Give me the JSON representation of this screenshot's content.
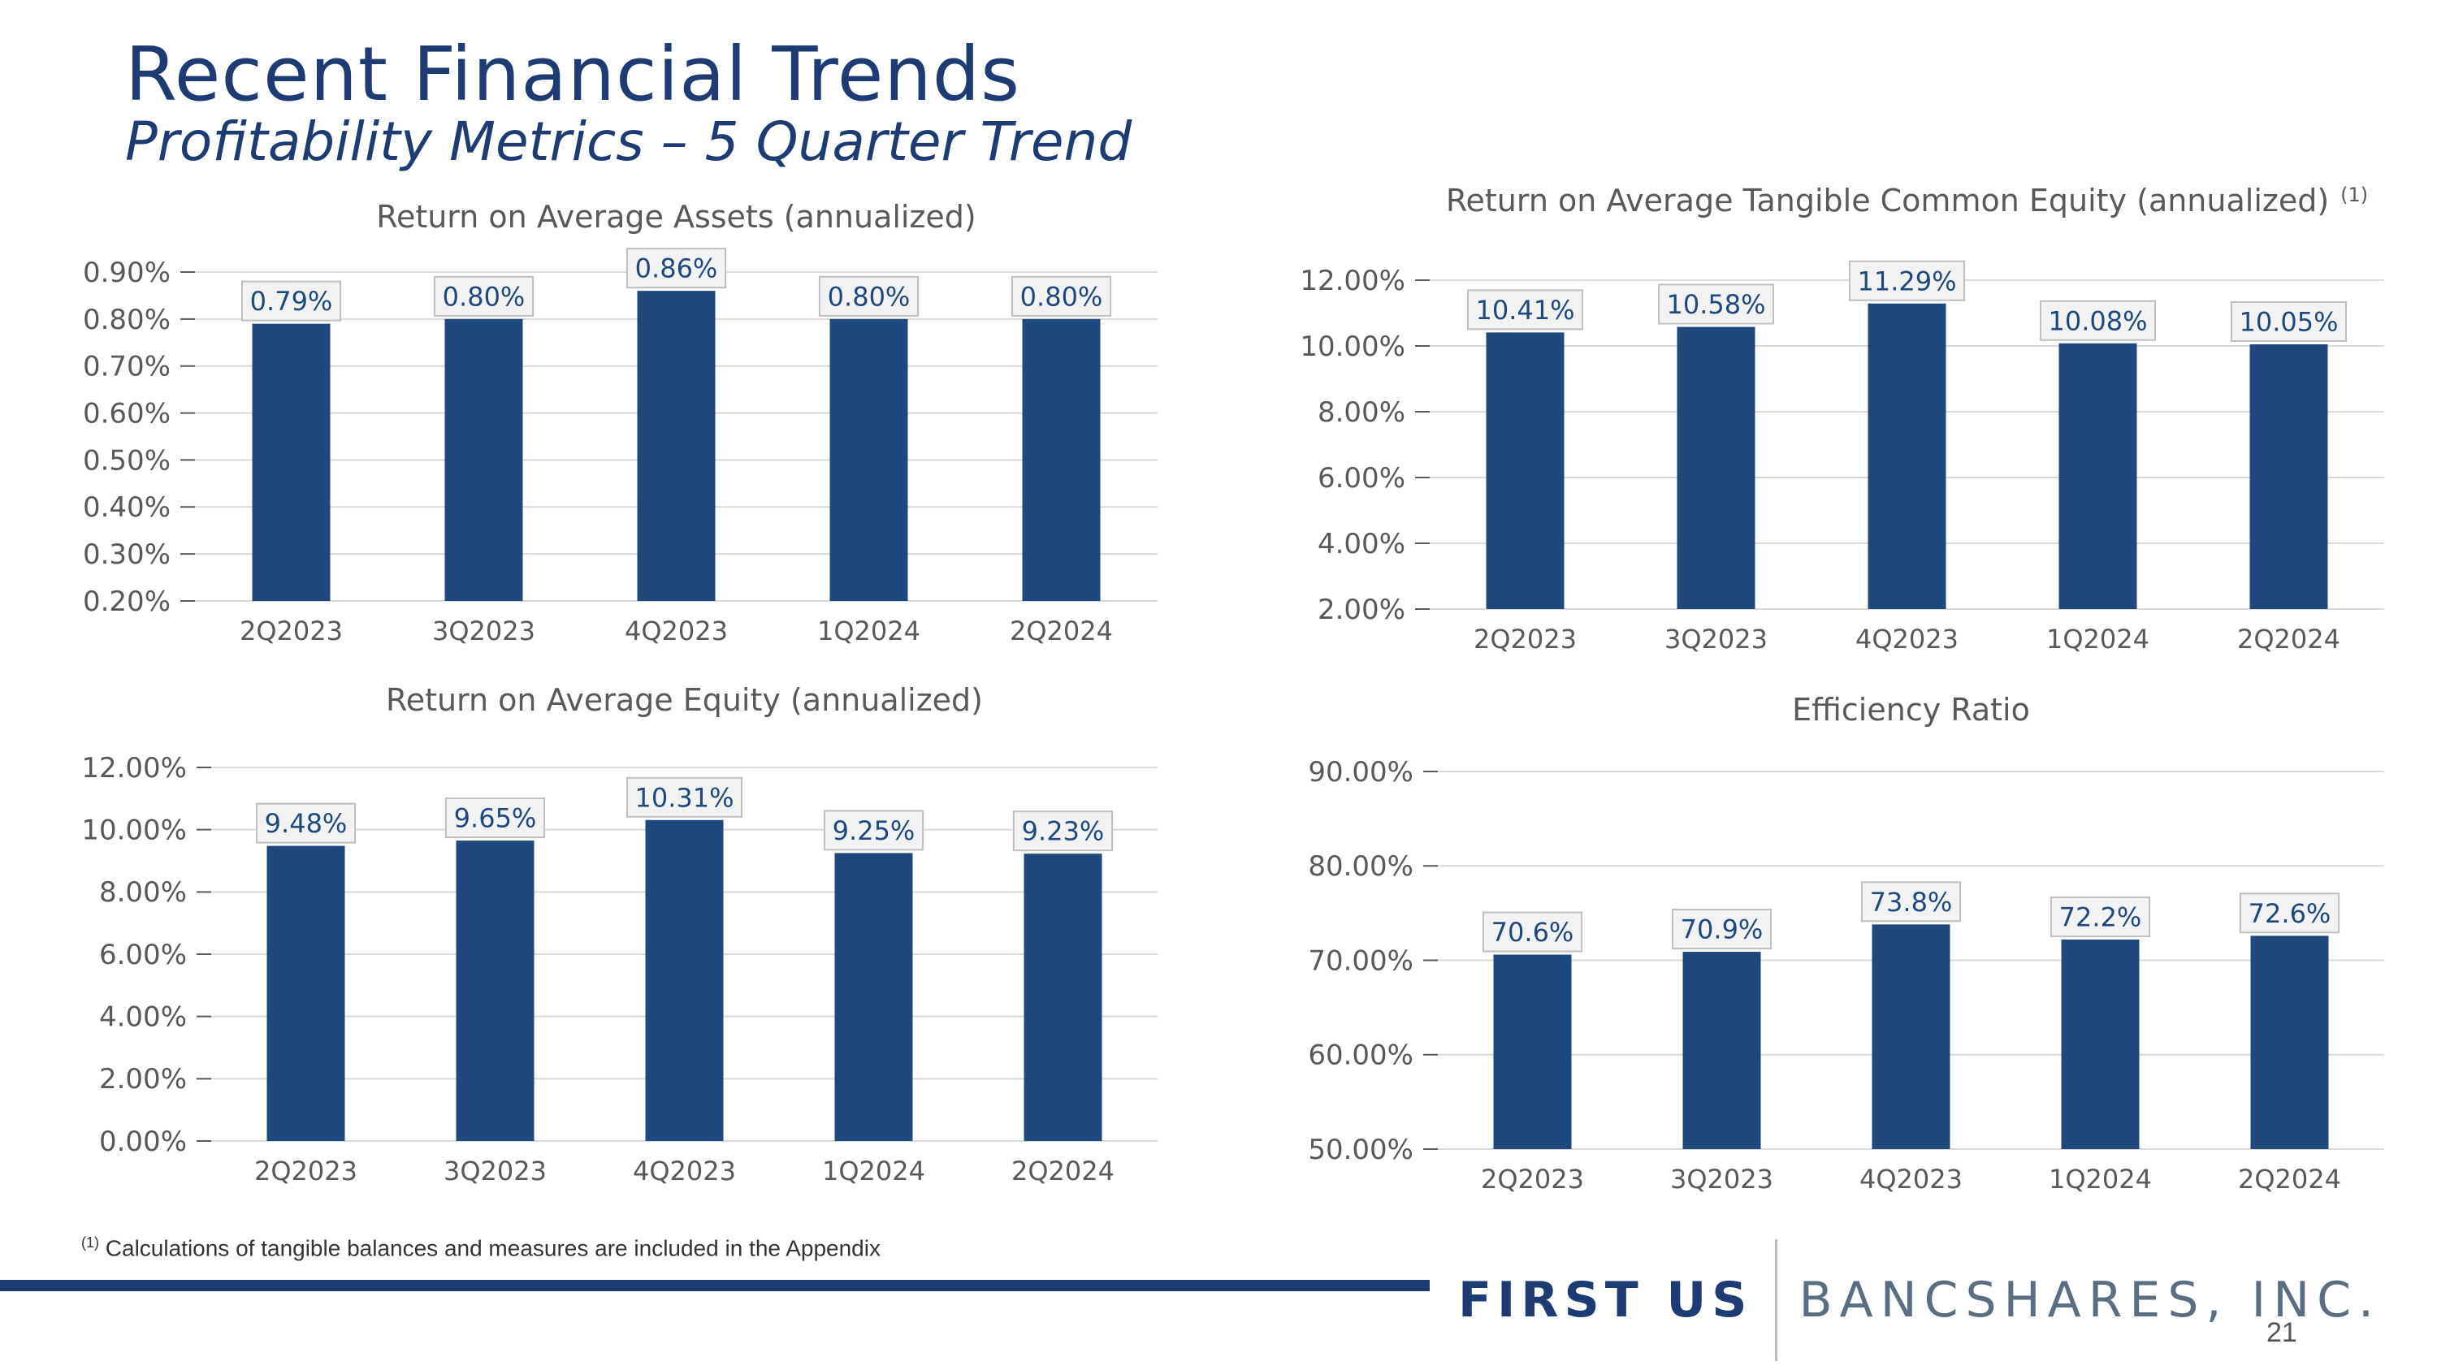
{
  "page": {
    "title": "Recent Financial Trends",
    "subtitle": "Profitability Metrics – 5 Quarter Trend",
    "footnote_mark": "(1)",
    "footnote_text": "Calculations of tangible balances and measures are included in the Appendix",
    "logo_first": "FIRST US",
    "logo_rest": "BANCSHARES, INC.",
    "page_number": "21"
  },
  "colors": {
    "bar": "#1f497d",
    "title": "#1f3b73",
    "grid": "#d9d9d9",
    "label_box": "#f2f2f2",
    "label_border": "#bfbfbf",
    "label_text": "#1f497d"
  },
  "chart_data": [
    {
      "type": "bar",
      "title": "Return on Average Assets (annualized)",
      "title_note": "",
      "categories": [
        "2Q2023",
        "3Q2023",
        "4Q2023",
        "1Q2024",
        "2Q2024"
      ],
      "values": [
        0.79,
        0.8,
        0.86,
        0.8,
        0.8
      ],
      "labels": [
        "0.79%",
        "0.80%",
        "0.86%",
        "0.80%",
        "0.80%"
      ],
      "ylim": [
        0.2,
        0.9
      ],
      "yticks": [
        0.2,
        0.3,
        0.4,
        0.5,
        0.6,
        0.7,
        0.8,
        0.9
      ],
      "ytick_labels": [
        "0.20%",
        "0.30%",
        "0.40%",
        "0.50%",
        "0.60%",
        "0.70%",
        "0.80%",
        "0.90%"
      ],
      "xlabel": "",
      "ylabel": ""
    },
    {
      "type": "bar",
      "title": "Return on Average Tangible Common Equity (annualized)",
      "title_note": "(1)",
      "categories": [
        "2Q2023",
        "3Q2023",
        "4Q2023",
        "1Q2024",
        "2Q2024"
      ],
      "values": [
        10.41,
        10.58,
        11.29,
        10.08,
        10.05
      ],
      "labels": [
        "10.41%",
        "10.58%",
        "11.29%",
        "10.08%",
        "10.05%"
      ],
      "ylim": [
        2.0,
        12.0
      ],
      "yticks": [
        2,
        4,
        6,
        8,
        10,
        12
      ],
      "ytick_labels": [
        "2.00%",
        "4.00%",
        "6.00%",
        "8.00%",
        "10.00%",
        "12.00%"
      ],
      "xlabel": "",
      "ylabel": ""
    },
    {
      "type": "bar",
      "title": "Return on Average Equity (annualized)",
      "title_note": "",
      "categories": [
        "2Q2023",
        "3Q2023",
        "4Q2023",
        "1Q2024",
        "2Q2024"
      ],
      "values": [
        9.48,
        9.65,
        10.31,
        9.25,
        9.23
      ],
      "labels": [
        "9.48%",
        "9.65%",
        "10.31%",
        "9.25%",
        "9.23%"
      ],
      "ylim": [
        0.0,
        12.0
      ],
      "yticks": [
        0,
        2,
        4,
        6,
        8,
        10,
        12
      ],
      "ytick_labels": [
        "0.00%",
        "2.00%",
        "4.00%",
        "6.00%",
        "8.00%",
        "10.00%",
        "12.00%"
      ],
      "xlabel": "",
      "ylabel": ""
    },
    {
      "type": "bar",
      "title": "Efficiency Ratio",
      "title_note": "",
      "categories": [
        "2Q2023",
        "3Q2023",
        "4Q2023",
        "1Q2024",
        "2Q2024"
      ],
      "values": [
        70.6,
        70.9,
        73.8,
        72.2,
        72.6
      ],
      "labels": [
        "70.6%",
        "70.9%",
        "73.8%",
        "72.2%",
        "72.6%"
      ],
      "ylim": [
        50.0,
        90.0
      ],
      "yticks": [
        50,
        60,
        70,
        80,
        90
      ],
      "ytick_labels": [
        "50.00%",
        "60.00%",
        "70.00%",
        "80.00%",
        "90.00%"
      ],
      "xlabel": "",
      "ylabel": ""
    }
  ]
}
